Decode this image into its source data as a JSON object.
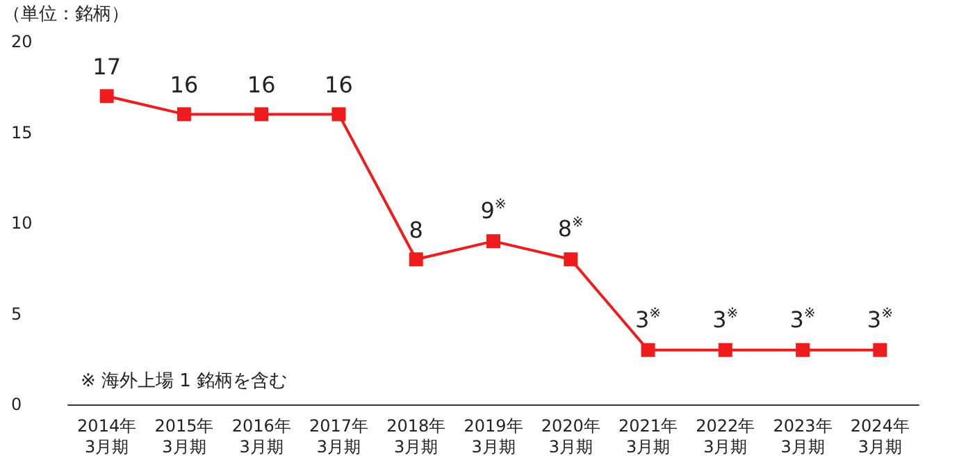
{
  "chart_data": {
    "type": "line",
    "ylabel": "（単位：銘柄）",
    "categories": [
      "2014年\n3月期",
      "2015年\n3月期",
      "2016年\n3月期",
      "2017年\n3月期",
      "2018年\n3月期",
      "2019年\n3月期",
      "2020年\n3月期",
      "2021年\n3月期",
      "2022年\n3月期",
      "2023年\n3月期",
      "2024年\n3月期"
    ],
    "series": [
      {
        "color": "#ee1c1c",
        "values": [
          17,
          16,
          16,
          16,
          8,
          9,
          8,
          3,
          3,
          3,
          3
        ],
        "value_labels": [
          "17",
          "16",
          "16",
          "16",
          "8",
          "9※",
          "8※",
          "3※",
          "3※",
          "3※",
          "3※"
        ]
      }
    ],
    "ylim": [
      0,
      20
    ],
    "yticks": [
      0,
      5,
      10,
      15,
      20
    ],
    "grid": false,
    "marker": "square",
    "line_style": "solid",
    "annotations": [
      "※ 海外上場 1 銘柄を含む"
    ]
  }
}
